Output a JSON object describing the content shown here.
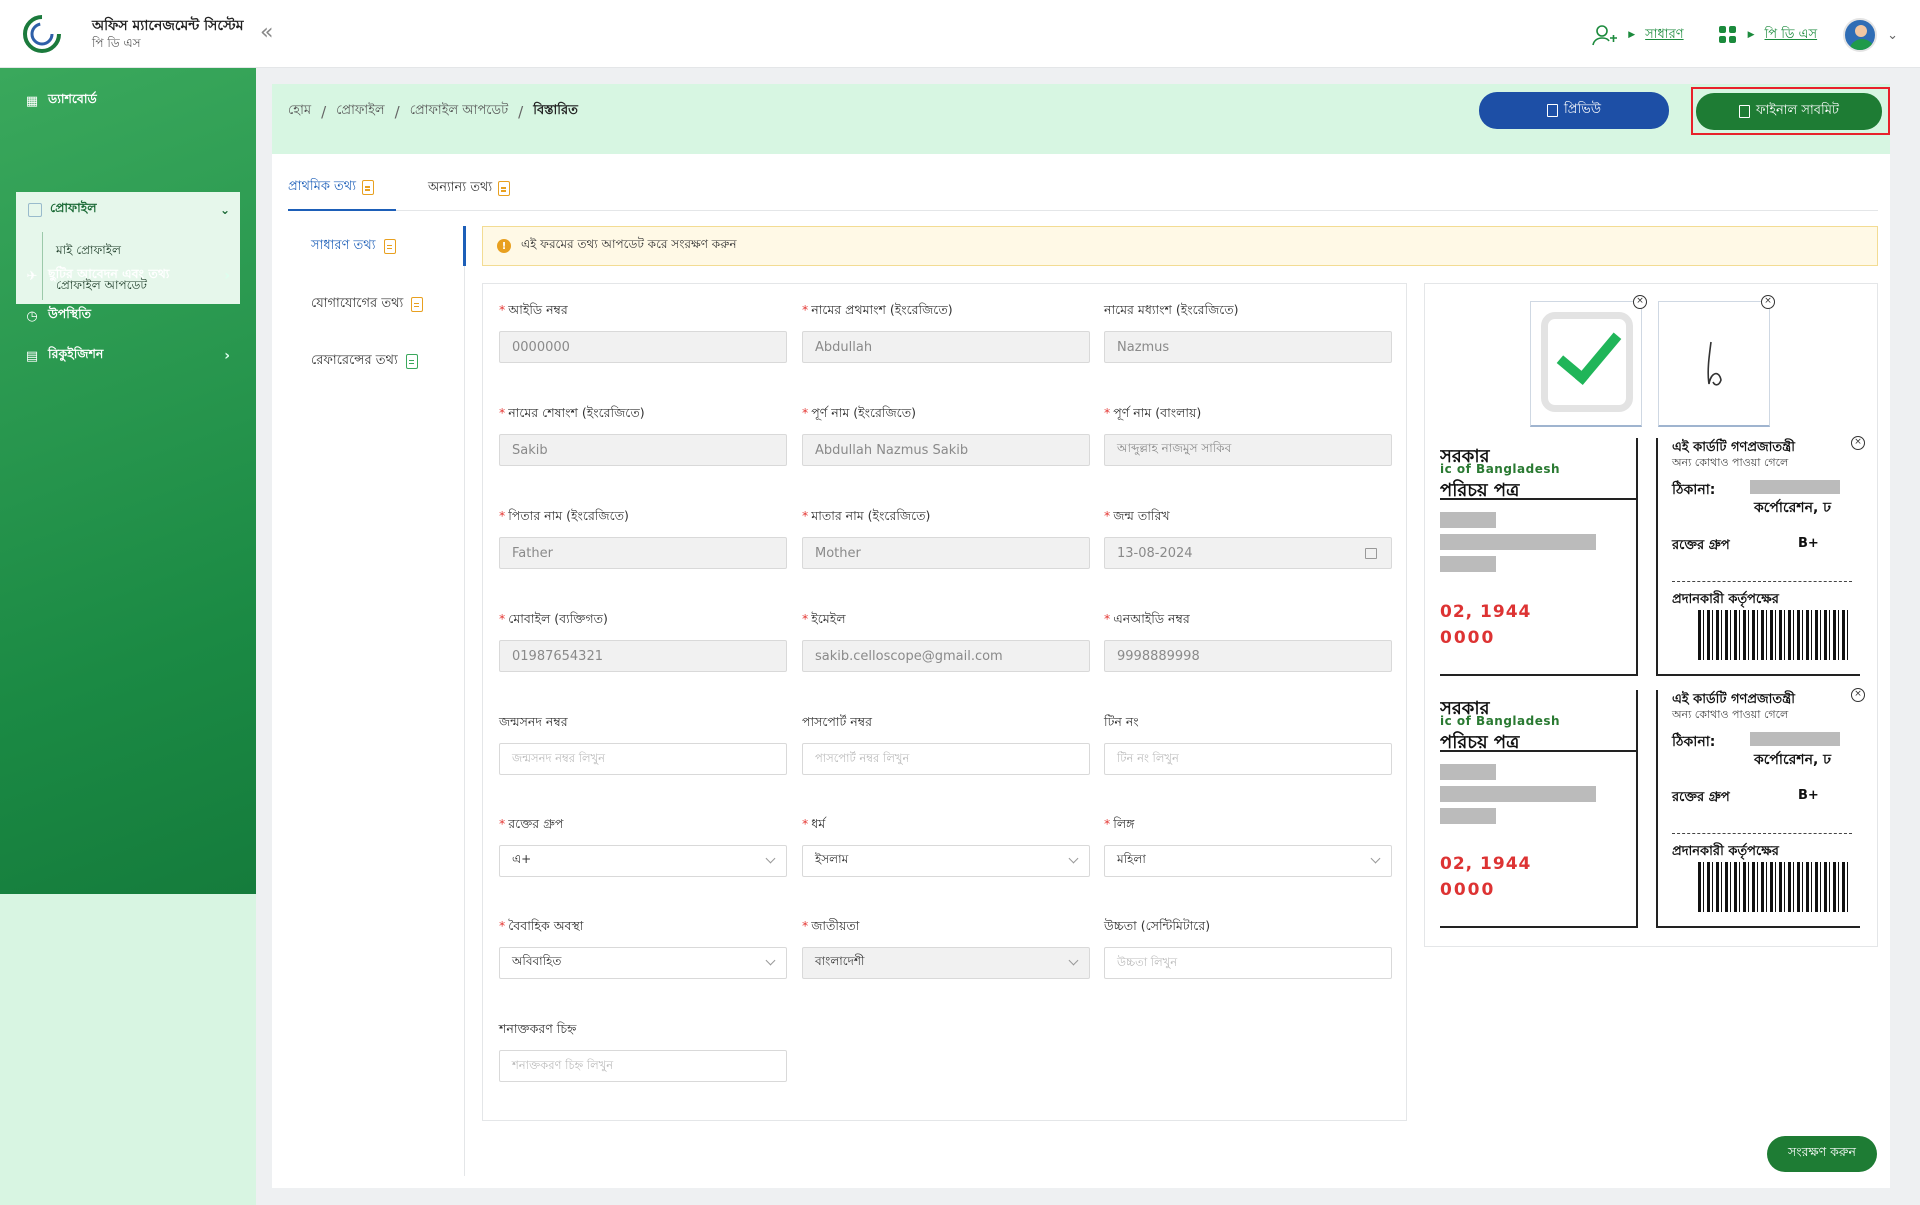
{
  "app": {
    "title": "অফিস ম্যানেজমেন্ট সিস্টেম",
    "subtitle": "পি ডি এস",
    "collapse_glyph": "«"
  },
  "header": {
    "role_label": "সাধারণ",
    "module_label": "পি ডি এস",
    "avatar_icon": "user-avatar"
  },
  "sidebar": {
    "items": [
      {
        "label": "ড্যাশবোর্ড",
        "icon": "dashboard-icon"
      },
      {
        "label": "প্রোফাইল",
        "icon": "profile-icon"
      },
      {
        "label": "ছুটির আবেদন এবং তথ্য",
        "icon": "leave-icon"
      },
      {
        "label": "উপস্থিতি",
        "icon": "clock-icon"
      },
      {
        "label": "রিকুইজিশন",
        "icon": "requisition-icon"
      }
    ],
    "profile_sub": [
      "মাই প্রোফাইল",
      "প্রোফাইল আপডেট"
    ]
  },
  "breadcrumb": [
    "হোম",
    "প্রোফাইল",
    "প্রোফাইল আপডেট",
    "বিস্তারিত"
  ],
  "actions": {
    "preview_label": "প্রিভিউ",
    "final_submit_label": "ফাইনাল সাবমিট",
    "save_label": "সংরক্ষণ করুন"
  },
  "tabs": [
    "প্রাথমিক তথ্য",
    "অন্যান্য তথ্য"
  ],
  "vnav": [
    "সাধারণ তথ্য",
    "যোগাযোগের তথ্য",
    "রেফারেন্সের তথ্য"
  ],
  "notice": "এই ফরমের তথ্য আপডেট করে সংরক্ষণ করুন",
  "form": {
    "id_no": {
      "label": "আইডি নম্বর",
      "value": "0000000"
    },
    "first_name_en": {
      "label": "নামের প্রথমাংশ (ইংরেজিতে)",
      "value": "Abdullah"
    },
    "middle_name_en": {
      "label": "নামের মধ্যাংশ (ইংরেজিতে)",
      "value": "Nazmus"
    },
    "last_name_en": {
      "label": "নামের শেষাংশ (ইংরেজিতে)",
      "value": "Sakib"
    },
    "full_name_en": {
      "label": "পূর্ণ নাম (ইংরেজিতে)",
      "value": "Abdullah Nazmus Sakib"
    },
    "full_name_bn": {
      "label": "পূর্ণ নাম (বাংলায়)",
      "value": "আব্দুল্লাহ নাজমুস সাকিব"
    },
    "father_name": {
      "label": "পিতার নাম (ইংরেজিতে)",
      "value": "Father"
    },
    "mother_name": {
      "label": "মাতার নাম (ইংরেজিতে)",
      "value": "Mother"
    },
    "dob": {
      "label": "জন্ম তারিখ",
      "value": "13-08-2024"
    },
    "mobile": {
      "label": "মোবাইল (ব্যক্তিগত)",
      "value": "01987654321"
    },
    "email": {
      "label": "ইমেইল",
      "value": "sakib.celloscope@gmail.com"
    },
    "nid": {
      "label": "এনআইডি নম্বর",
      "value": "9998889998"
    },
    "birth_cert": {
      "label": "জন্মসনদ নম্বর",
      "placeholder": "জন্মসনদ নম্বর লিখুন"
    },
    "passport": {
      "label": "পাসপোর্ট নম্বর",
      "placeholder": "পাসপোর্ট নম্বর লিখুন"
    },
    "tin": {
      "label": "টিন নং",
      "placeholder": "টিন নং লিখুন"
    },
    "blood_group": {
      "label": "রক্তের গ্রুপ",
      "value": "এ+"
    },
    "religion": {
      "label": "ধর্ম",
      "value": "ইসলাম"
    },
    "gender": {
      "label": "লিঙ্গ",
      "value": "মহিলা"
    },
    "marital": {
      "label": "বৈবাহিক অবস্থা",
      "value": "অবিবাহিত"
    },
    "nationality": {
      "label": "জাতীয়তা",
      "value": "বাংলাদেশী"
    },
    "height": {
      "label": "উচ্চতা (সেন্টিমিটারে)",
      "placeholder": "উচ্চতা লিখুন"
    },
    "id_mark": {
      "label": "শনাক্তকরণ চিহ্ন",
      "placeholder": "শনাক্তকরণ চিহ্ন লিখুন"
    }
  },
  "nid_card": {
    "line1": "সরকার",
    "line2": "ic of Bangladesh",
    "line3": "পরিচয় পত্র",
    "date": "02, 1944",
    "zeros": "0000",
    "back1": "এই কার্ডটি গণপ্রজাতন্ত্রী",
    "back2": "অন্য কোথাও পাওয়া গেলে",
    "addr": "ঠিকানা:",
    "addr2": "কর্পোরেশন, ঢ",
    "blood": "রক্তের গ্রুপ",
    "blood_v": "B+",
    "issuer": "প্রদানকারী কর্তৃপক্ষের"
  },
  "colors": {
    "sidebar_green": "#1b8a44",
    "primary_blue": "#1d4fa6",
    "submit_green": "#1e7c34",
    "highlight_red": "#e8222b"
  }
}
